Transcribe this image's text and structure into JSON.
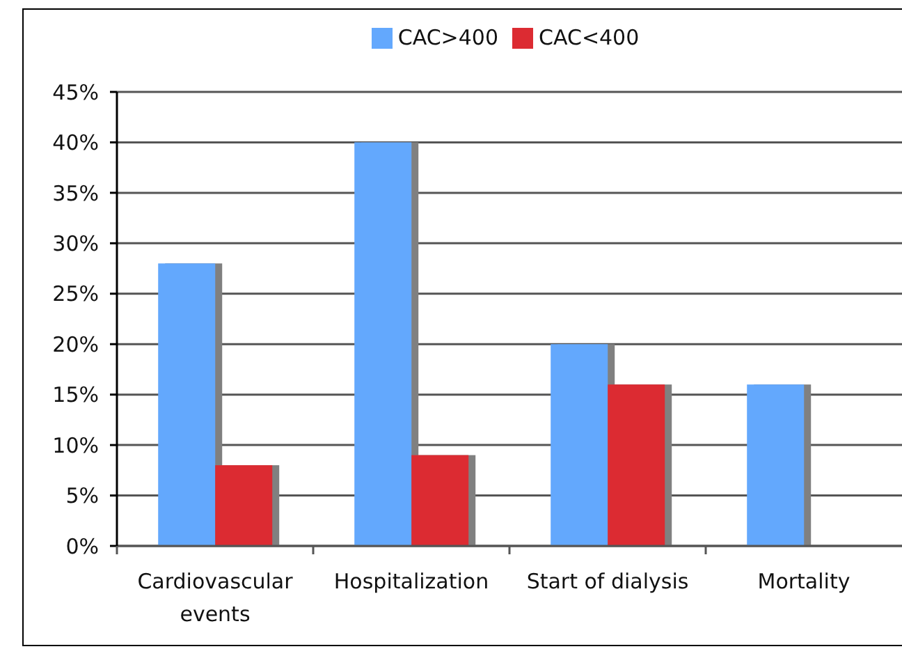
{
  "chart_data": {
    "type": "bar",
    "categories": [
      "Cardiovascular events",
      "Hospitalization",
      "Start of dialysis",
      "Mortality"
    ],
    "series": [
      {
        "name": "CAC>400",
        "color": "#63a8fd",
        "values": [
          28,
          40,
          20,
          16
        ]
      },
      {
        "name": "CAC<400",
        "color": "#dc2b32",
        "values": [
          8,
          9,
          16,
          0
        ]
      }
    ],
    "ylim": [
      0,
      45
    ],
    "yticks": [
      {
        "value": 0,
        "label": "0%"
      },
      {
        "value": 5,
        "label": "5%"
      },
      {
        "value": 10,
        "label": "10%"
      },
      {
        "value": 15,
        "label": "15%"
      },
      {
        "value": 20,
        "label": "20%"
      },
      {
        "value": 25,
        "label": "25%"
      },
      {
        "value": 30,
        "label": "30%"
      },
      {
        "value": 35,
        "label": "35%"
      },
      {
        "value": 40,
        "label": "40%"
      },
      {
        "value": 45,
        "label": "45%"
      }
    ],
    "grid": "y",
    "legend": "top"
  }
}
